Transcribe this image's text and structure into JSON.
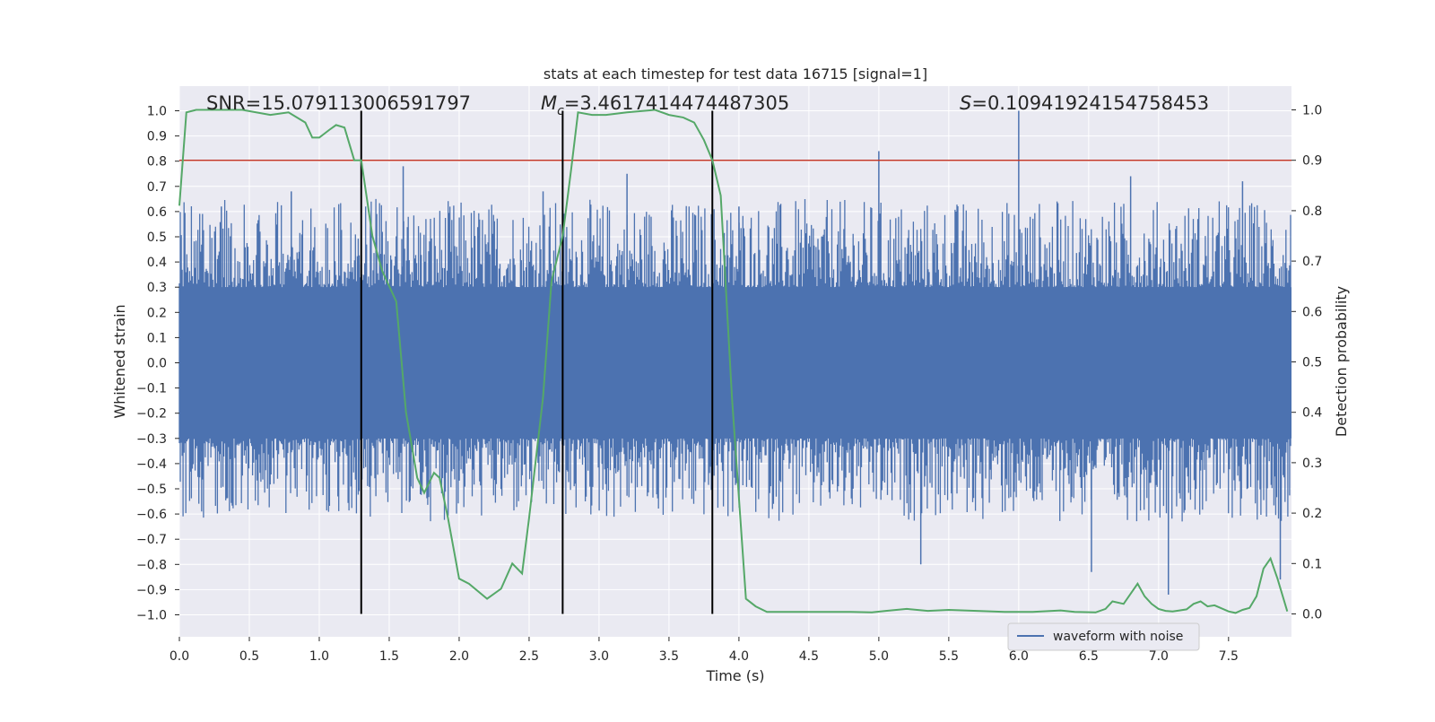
{
  "chart_data": {
    "type": "line",
    "title": "stats at each timestep for test data 16715 [signal=1]",
    "xlabel": "Time (s)",
    "ylabel": "Whitened strain",
    "y2label": "Detection probability",
    "xlim": [
      0.0,
      8.0
    ],
    "ylim": [
      -1.05,
      1.05
    ],
    "y2lim": [
      -0.045,
      1.045
    ],
    "x_ticks": [
      "0.0",
      "0.5",
      "1.0",
      "1.5",
      "2.0",
      "2.5",
      "3.0",
      "3.5",
      "4.0",
      "4.5",
      "5.0",
      "5.5",
      "6.0",
      "6.5",
      "7.0",
      "7.5"
    ],
    "y_ticks": [
      "1.0",
      "0.9",
      "0.8",
      "0.7",
      "0.6",
      "0.5",
      "0.4",
      "0.3",
      "0.2",
      "0.1",
      "0.0",
      "−0.1",
      "−0.2",
      "−0.3",
      "−0.4",
      "−0.5",
      "−0.6",
      "−0.7",
      "−0.8",
      "−0.9",
      "−1.0"
    ],
    "y2_ticks": [
      "1.0",
      "0.9",
      "0.8",
      "0.7",
      "0.6",
      "0.5",
      "0.4",
      "0.3",
      "0.2",
      "0.1",
      "0.0"
    ],
    "grid": true,
    "annotations": {
      "snr": "SNR=15.079113006591797",
      "mc_symbol": "M",
      "mc_sub": "c",
      "mc_value": "=3.4617414474487305",
      "s_symbol": "S",
      "s_value": "=0.10941924154758453"
    },
    "legend": {
      "label": "waveform with noise",
      "placement": "lower-right"
    },
    "threshold_line": {
      "y2": 0.9,
      "color": "#c0392b"
    },
    "vertical_markers": [
      1.3,
      2.74,
      3.81
    ],
    "series": [
      {
        "name": "waveform with noise",
        "axis": "left",
        "color": "#4c72b0",
        "description_peaks": [
          [
            0.3,
            0.62
          ],
          [
            0.8,
            0.68
          ],
          [
            1.3,
            0.72
          ],
          [
            1.6,
            0.78
          ],
          [
            2.6,
            0.68
          ],
          [
            3.2,
            0.75
          ],
          [
            4.0,
            0.62
          ],
          [
            5.0,
            0.84
          ],
          [
            6.0,
            1.0
          ],
          [
            6.8,
            0.74
          ],
          [
            7.6,
            0.72
          ],
          [
            7.87,
            -0.86
          ],
          [
            7.07,
            -0.92
          ],
          [
            6.52,
            -0.83
          ],
          [
            5.3,
            -0.8
          ]
        ]
      },
      {
        "axis": "right",
        "color": "#55a868",
        "x": [
          0.0,
          0.05,
          0.12,
          0.25,
          0.45,
          0.65,
          0.78,
          0.9,
          0.95,
          1.0,
          1.07,
          1.12,
          1.18,
          1.25,
          1.3,
          1.38,
          1.45,
          1.55,
          1.62,
          1.7,
          1.75,
          1.82,
          1.86,
          1.92,
          2.0,
          2.07,
          2.2,
          2.3,
          2.38,
          2.45,
          2.5,
          2.6,
          2.66,
          2.74,
          2.8,
          2.85,
          2.95,
          3.05,
          3.2,
          3.4,
          3.5,
          3.6,
          3.68,
          3.75,
          3.81,
          3.87,
          3.95,
          4.05,
          4.12,
          4.2,
          4.5,
          4.8,
          4.95,
          5.05,
          5.2,
          5.35,
          5.5,
          5.7,
          5.9,
          6.1,
          6.3,
          6.4,
          6.55,
          6.62,
          6.67,
          6.75,
          6.85,
          6.9,
          6.95,
          7.0,
          7.05,
          7.1,
          7.15,
          7.2,
          7.25,
          7.3,
          7.35,
          7.4,
          7.5,
          7.55,
          7.6,
          7.65,
          7.7,
          7.75,
          7.8,
          7.85,
          7.92
        ],
        "values": [
          0.81,
          0.995,
          1.0,
          1.0,
          1.0,
          0.99,
          0.995,
          0.975,
          0.945,
          0.945,
          0.96,
          0.97,
          0.965,
          0.9,
          0.9,
          0.75,
          0.68,
          0.62,
          0.4,
          0.27,
          0.24,
          0.28,
          0.27,
          0.19,
          0.07,
          0.06,
          0.03,
          0.05,
          0.1,
          0.08,
          0.19,
          0.43,
          0.66,
          0.75,
          0.88,
          0.995,
          0.99,
          0.99,
          0.995,
          1.0,
          0.99,
          0.985,
          0.975,
          0.94,
          0.9,
          0.83,
          0.43,
          0.03,
          0.015,
          0.004,
          0.004,
          0.004,
          0.003,
          0.006,
          0.01,
          0.006,
          0.008,
          0.006,
          0.004,
          0.004,
          0.007,
          0.004,
          0.003,
          0.01,
          0.025,
          0.02,
          0.06,
          0.035,
          0.02,
          0.01,
          0.006,
          0.005,
          0.007,
          0.009,
          0.02,
          0.025,
          0.015,
          0.017,
          0.005,
          0.002,
          0.008,
          0.012,
          0.035,
          0.09,
          0.11,
          0.07,
          0.005
        ]
      }
    ]
  }
}
